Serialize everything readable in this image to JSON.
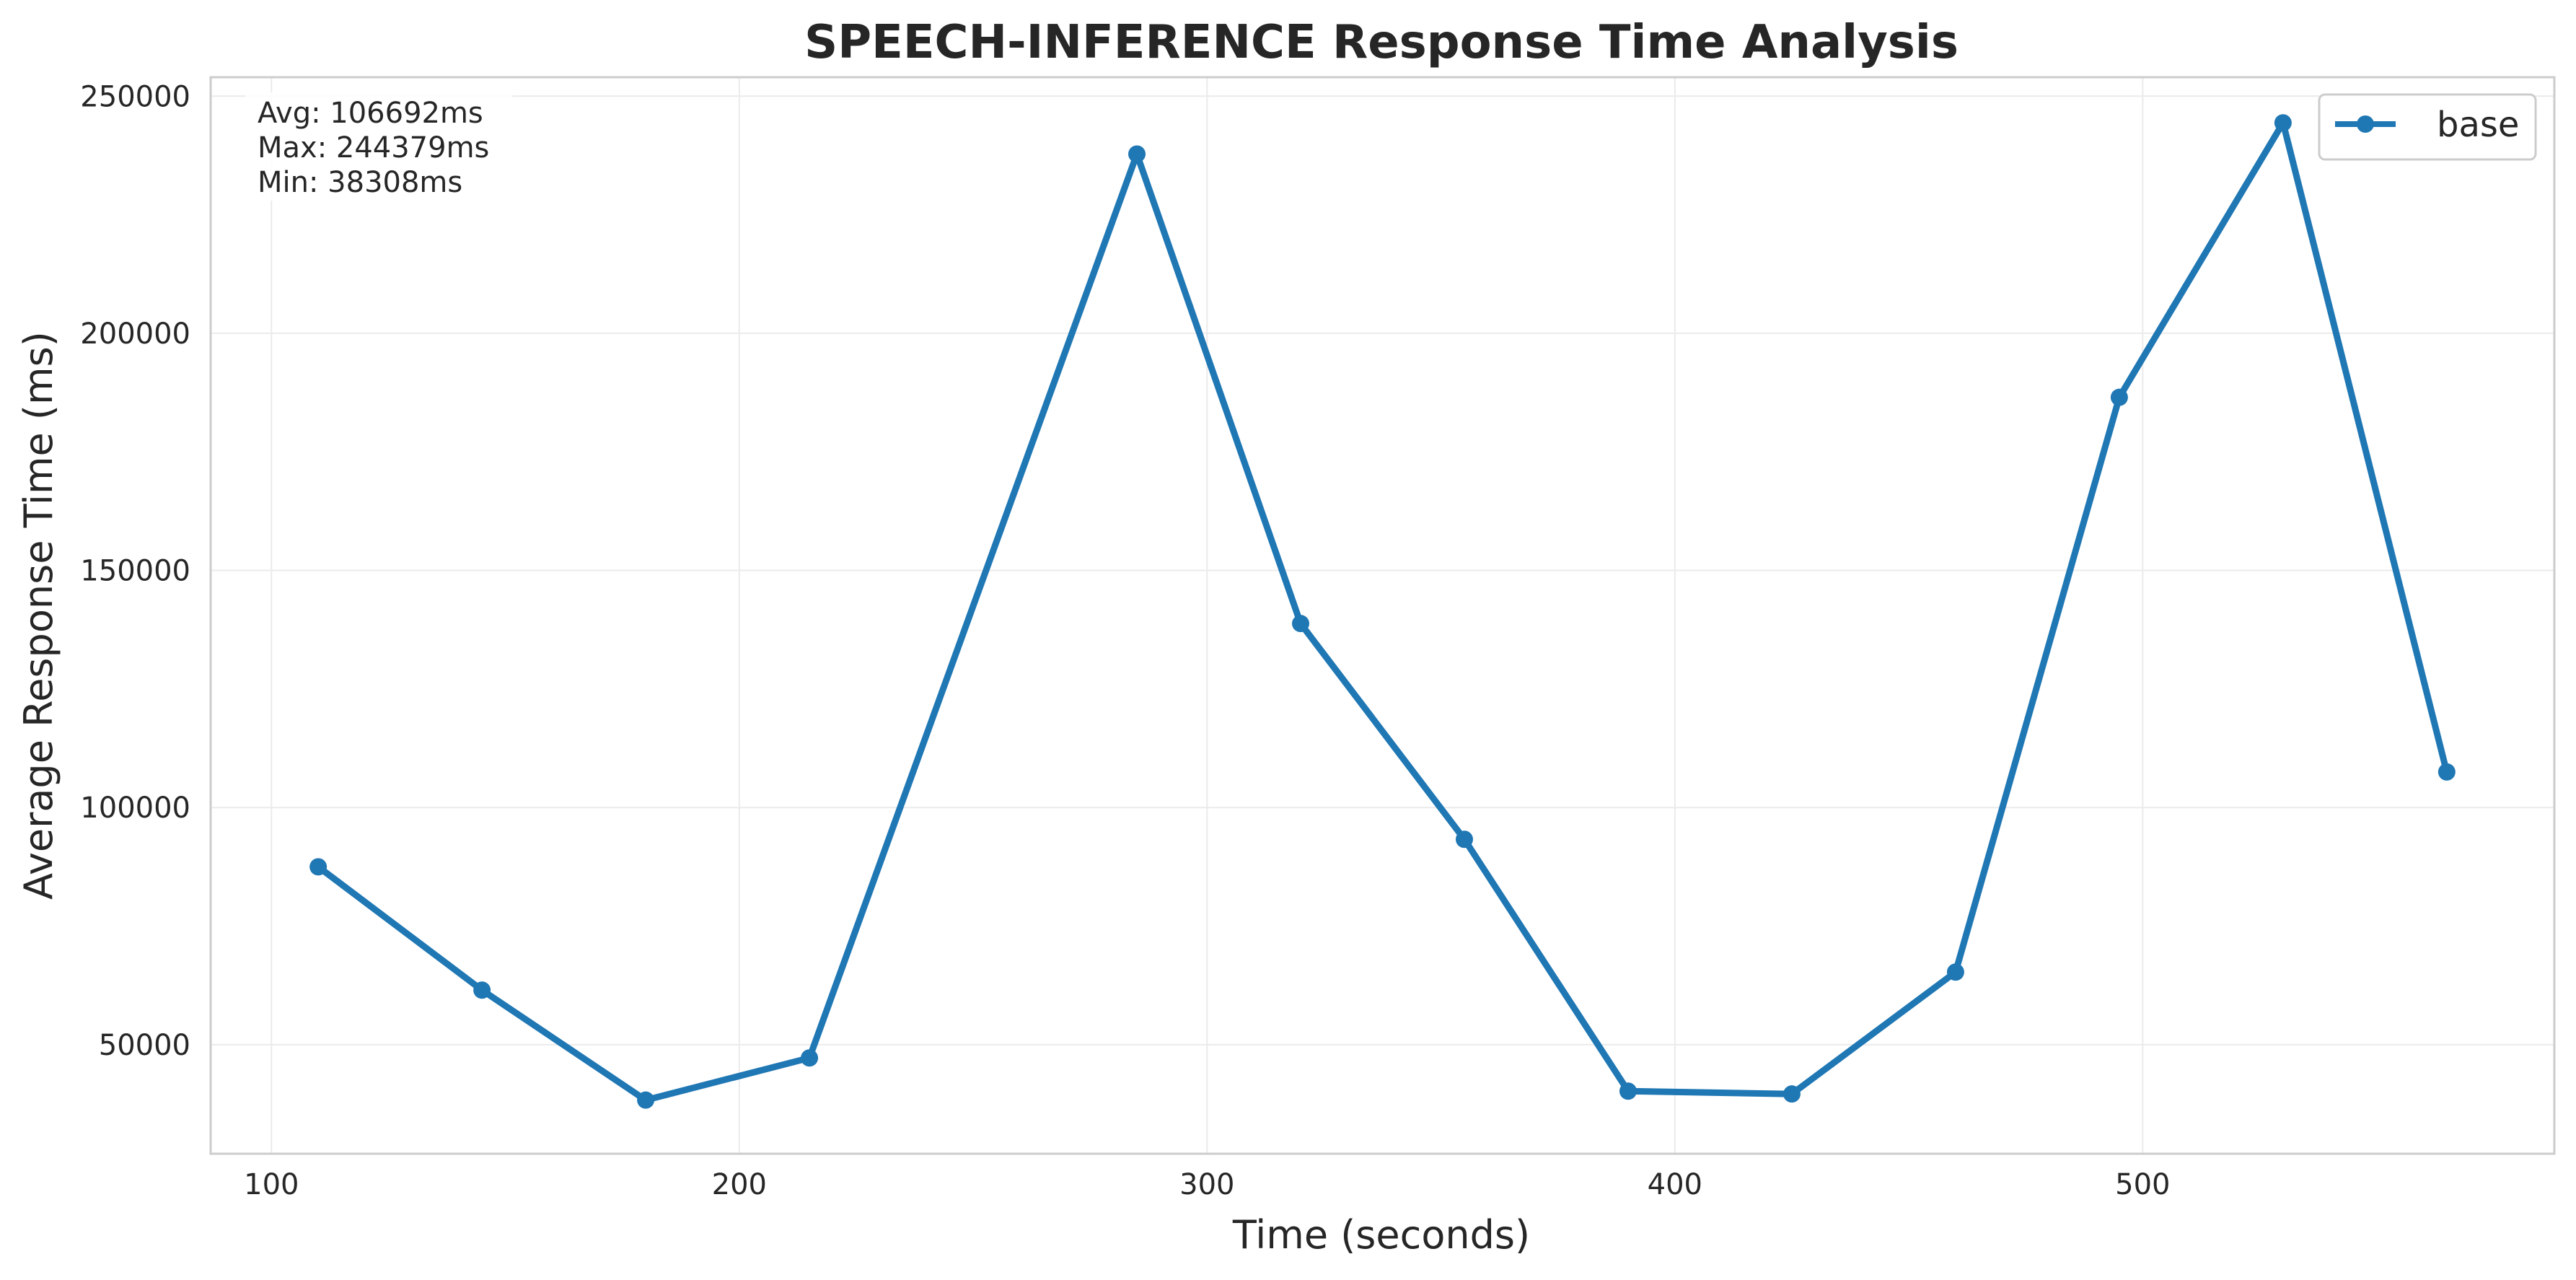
{
  "chart_data": {
    "type": "line",
    "title": "SPEECH-INFERENCE Response Time Analysis",
    "xlabel": "Time (seconds)",
    "ylabel": "Average Response Time (ms)",
    "xlim": [
      87,
      588
    ],
    "ylim": [
      27000,
      254000
    ],
    "xticks": [
      100,
      200,
      300,
      400,
      500
    ],
    "yticks": [
      50000,
      100000,
      150000,
      200000,
      250000
    ],
    "grid": true,
    "legend_position": "top-right",
    "series": [
      {
        "name": "base",
        "color": "#1f77b4",
        "marker": "circle",
        "x": [
          110,
          145,
          180,
          215,
          285,
          320,
          355,
          390,
          425,
          460,
          495,
          530,
          565
        ],
        "y": [
          87500,
          61500,
          38308,
          47200,
          237800,
          138800,
          93300,
          40200,
          39600,
          65300,
          186500,
          244379,
          107500
        ]
      }
    ],
    "annotations": {
      "avg": "Avg: 106692ms",
      "max": "Max: 244379ms",
      "min": "Min: 38308ms"
    }
  }
}
